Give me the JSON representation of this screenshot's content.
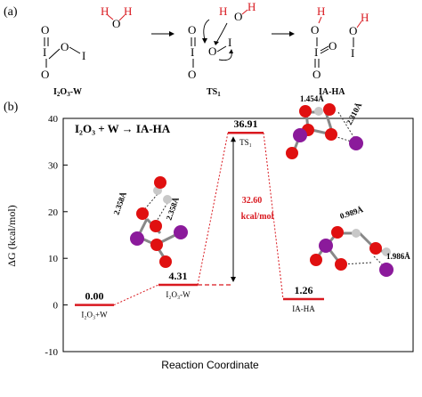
{
  "panel_a": {
    "label": "(a)",
    "molecules": [
      {
        "name": "I2O3-W",
        "label_main": "I",
        "label_sub1": "2",
        "label_mid": "O",
        "label_sub2": "3",
        "label_tail": "-W"
      },
      {
        "name": "TS1",
        "label_main": "TS",
        "label_sub": "1"
      },
      {
        "name": "IA-HA",
        "label_main": "IA-HA"
      }
    ]
  },
  "panel_b": {
    "label": "(b)",
    "reaction_title": "I₂O₃ + W → IA-HA",
    "ylabel": "ΔG (kcal/mol)",
    "xlabel": "Reaction Coordinate",
    "yticks": [
      "40",
      "30",
      "20",
      "10",
      "0",
      "-10"
    ],
    "barrier_line1": "32.60",
    "barrier_line2": "kcal/mol",
    "geometries": {
      "reactant": [
        "2.358Å",
        "2.358Å"
      ],
      "ts": [
        "1.454Å",
        "2.310Å"
      ],
      "product": [
        "0.989Å",
        "1.986Å"
      ]
    }
  },
  "chart_data": {
    "type": "energy-profile",
    "xlabel": "Reaction Coordinate",
    "ylabel": "ΔG (kcal/mol)",
    "ylim": [
      -10,
      40
    ],
    "title": "I2O3 + W → IA-HA",
    "levels": [
      {
        "value": 0.0,
        "label": "0.00",
        "name": "I₂O₃+W",
        "color": "#d9181f"
      },
      {
        "value": 4.31,
        "label": "4.31",
        "name": "I₂O₃-W",
        "color": "#d9181f"
      },
      {
        "value": 36.91,
        "label": "36.91",
        "name": "TS₁",
        "color": "#d9181f"
      },
      {
        "value": 1.26,
        "label": "1.26",
        "name": "IA-HA",
        "color": "#d9181f"
      }
    ],
    "barrier": {
      "value": 32.6,
      "label": "32.60 kcal/mol"
    },
    "colors": {
      "accent": "#d9181f",
      "oxygen": "#e01010",
      "iodine": "#8b1a9b",
      "hydrogen": "#c8c8c8"
    }
  }
}
